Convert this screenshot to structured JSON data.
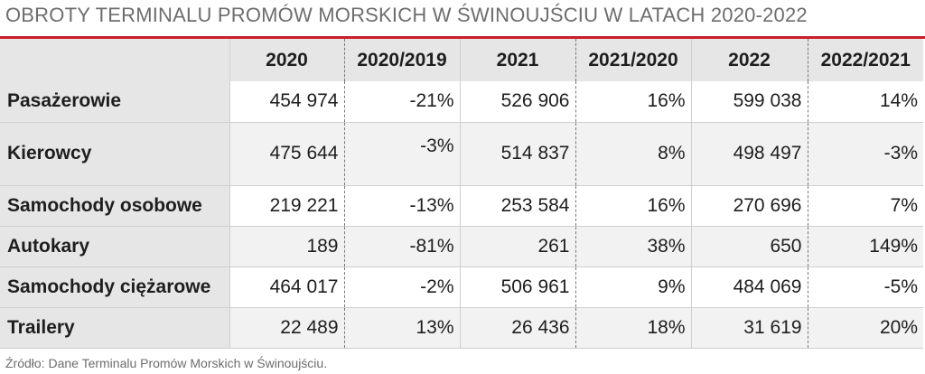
{
  "title": "OBROTY TERMINALU PROMÓW MORSKICH W ŚWINOUJŚCIU W LATACH 2020-2022",
  "source": "Źródło: Dane Terminalu Promów Morskich w Świnoujściu.",
  "colors": {
    "accent_line": "#c8202a",
    "header_bg": "#e6e6e6",
    "row_shade": "#f2f2f2"
  },
  "chart_data": {
    "type": "table",
    "columns": [
      "",
      "2020",
      "2020/2019",
      "2021",
      "2021/2020",
      "2022",
      "2022/2021"
    ],
    "rows": [
      {
        "label": "Pasażerowie",
        "cells": [
          "454 974",
          "-21%",
          "526 906",
          "16%",
          "599 038",
          "14%"
        ]
      },
      {
        "label": "Kierowcy",
        "cells": [
          "475 644",
          "-3%",
          "514 837",
          "8%",
          "498 497",
          "-3%"
        ]
      },
      {
        "label": "Samochody osobowe",
        "cells": [
          "219 221",
          "-13%",
          "253 584",
          "16%",
          "270 696",
          "7%"
        ]
      },
      {
        "label": "Autokary",
        "cells": [
          "189",
          "-81%",
          "261",
          "38%",
          "650",
          "149%"
        ]
      },
      {
        "label": "Samochody ciężarowe",
        "cells": [
          "464 017",
          "-2%",
          "506 961",
          "9%",
          "484 069",
          "-5%"
        ]
      },
      {
        "label": "Trailery",
        "cells": [
          "22 489",
          "13%",
          "26 436",
          "18%",
          "31 619",
          "20%"
        ]
      }
    ]
  }
}
